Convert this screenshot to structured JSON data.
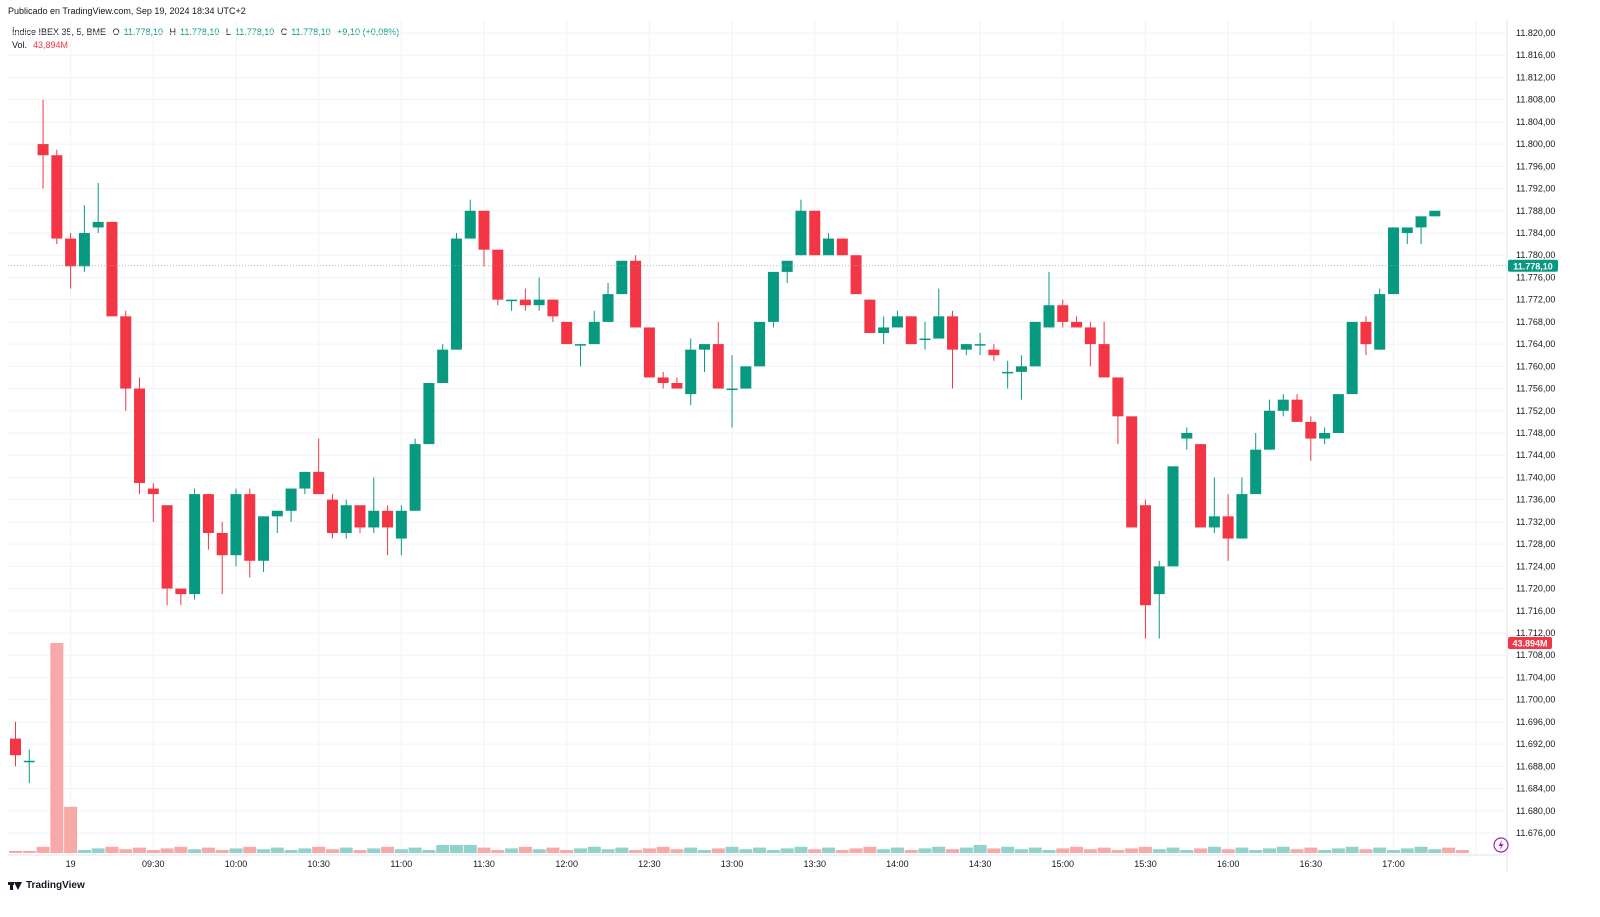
{
  "header": {
    "published": "Publicado en TradingView.com, Sep 19, 2024 18:34 UTC+2"
  },
  "legend": {
    "symbol": "Índice IBEX 35, 5, BME",
    "open_label": "O",
    "open": "11.778,10",
    "high_label": "H",
    "high": "11.778,10",
    "low_label": "L",
    "low": "11.778,10",
    "close_label": "C",
    "close": "11.778,10",
    "change": "+9,10 (+0,08%)",
    "volume_label": "Vol.",
    "volume": "43,894M"
  },
  "footer": {
    "brand": "TradingView"
  },
  "colors": {
    "up": "#089981",
    "down": "#f23645",
    "vol_up": "#92d2cc",
    "vol_down": "#f7a9a7",
    "grid": "#f0f3fa"
  },
  "chart_data": {
    "type": "candlestick",
    "y_ticks": [
      "11.820,00",
      "11.816,00",
      "11.812,00",
      "11.808,00",
      "11.804,00",
      "11.800,00",
      "11.796,00",
      "11.792,00",
      "11.788,00",
      "11.784,00",
      "11.780,00",
      "11.776,00",
      "11.772,00",
      "11.768,00",
      "11.764,00",
      "11.760,00",
      "11.756,00",
      "11.752,00",
      "11.748,00",
      "11.744,00",
      "11.740,00",
      "11.736,00",
      "11.732,00",
      "11.728,00",
      "11.724,00",
      "11.720,00",
      "11.716,00",
      "11.712,00",
      "11.708,00",
      "11.704,00",
      "11.700,00",
      "11.696,00",
      "11.692,00",
      "11.688,00",
      "11.684,00",
      "11.680,00",
      "11.676,00"
    ],
    "y_tick_values": [
      11820,
      11816,
      11812,
      11808,
      11804,
      11800,
      11796,
      11792,
      11788,
      11784,
      11780,
      11776,
      11772,
      11768,
      11764,
      11760,
      11756,
      11752,
      11748,
      11744,
      11740,
      11736,
      11732,
      11728,
      11724,
      11720,
      11716,
      11712,
      11708,
      11704,
      11700,
      11696,
      11692,
      11688,
      11684,
      11680,
      11676
    ],
    "x_labels": [
      {
        "i": 4,
        "label": "19"
      },
      {
        "i": 10,
        "label": "09:30"
      },
      {
        "i": 16,
        "label": "10:00"
      },
      {
        "i": 22,
        "label": "10:30"
      },
      {
        "i": 28,
        "label": "11:00"
      },
      {
        "i": 34,
        "label": "11:30"
      },
      {
        "i": 40,
        "label": "12:00"
      },
      {
        "i": 46,
        "label": "12:30"
      },
      {
        "i": 52,
        "label": "13:00"
      },
      {
        "i": 58,
        "label": "13:30"
      },
      {
        "i": 64,
        "label": "14:00"
      },
      {
        "i": 70,
        "label": "14:30"
      },
      {
        "i": 76,
        "label": "15:00"
      },
      {
        "i": 82,
        "label": "15:30"
      },
      {
        "i": 88,
        "label": "16:00"
      },
      {
        "i": 94,
        "label": "16:30"
      },
      {
        "i": 100,
        "label": "17:00"
      },
      {
        "i": 106,
        "label": ""
      }
    ],
    "last_price": 11778.1,
    "last_price_label": "11.778,10",
    "last_volume_label": "43.894M",
    "ohlc": [
      [
        11693,
        11696,
        11688,
        11690
      ],
      [
        11689,
        11691,
        11685,
        11689
      ],
      [
        11800,
        11808,
        11792,
        11798
      ],
      [
        11798,
        11799,
        11782,
        11783
      ],
      [
        11783,
        11784,
        11774,
        11778
      ],
      [
        11778,
        11789,
        11777,
        11784
      ],
      [
        11785,
        11793,
        11784,
        11786
      ],
      [
        11786,
        11786,
        11769,
        11769
      ],
      [
        11769,
        11770,
        11752,
        11756
      ],
      [
        11756,
        11758,
        11737,
        11739
      ],
      [
        11738,
        11739,
        11732,
        11737
      ],
      [
        11735,
        11735,
        11717,
        11720
      ],
      [
        11720,
        11720,
        11717,
        11719
      ],
      [
        11719,
        11738,
        11718,
        11737
      ],
      [
        11737,
        11737,
        11727,
        11730
      ],
      [
        11730,
        11732,
        11719,
        11726
      ],
      [
        11726,
        11738,
        11724,
        11737
      ],
      [
        11737,
        11738,
        11722,
        11725
      ],
      [
        11725,
        11733,
        11723,
        11733
      ],
      [
        11733,
        11734,
        11730,
        11734
      ],
      [
        11734,
        11738,
        11732,
        11738
      ],
      [
        11738,
        11741,
        11737,
        11741
      ],
      [
        11741,
        11747,
        11737,
        11737
      ],
      [
        11736,
        11737,
        11729,
        11730
      ],
      [
        11730,
        11736,
        11729,
        11735
      ],
      [
        11735,
        11735,
        11730,
        11731
      ],
      [
        11731,
        11740,
        11730,
        11734
      ],
      [
        11734,
        11735,
        11726,
        11731
      ],
      [
        11729,
        11735,
        11726,
        11734
      ],
      [
        11734,
        11747,
        11734,
        11746
      ],
      [
        11746,
        11757,
        11746,
        11757
      ],
      [
        11757,
        11764,
        11757,
        11763
      ],
      [
        11763,
        11784,
        11763,
        11783
      ],
      [
        11783,
        11790,
        11783,
        11788
      ],
      [
        11788,
        11788,
        11778,
        11781
      ],
      [
        11781,
        11781,
        11771,
        11772
      ],
      [
        11772,
        11772,
        11770,
        11772
      ],
      [
        11772,
        11774,
        11770,
        11771
      ],
      [
        11771,
        11776,
        11770,
        11772
      ],
      [
        11772,
        11772,
        11768,
        11769
      ],
      [
        11768,
        11768,
        11764,
        11764
      ],
      [
        11764,
        11764,
        11760,
        11764
      ],
      [
        11764,
        11770,
        11764,
        11768
      ],
      [
        11768,
        11775,
        11768,
        11773
      ],
      [
        11773,
        11779,
        11773,
        11779
      ],
      [
        11779,
        11780,
        11767,
        11767
      ],
      [
        11767,
        11767,
        11758,
        11758
      ],
      [
        11758,
        11759,
        11756,
        11757
      ],
      [
        11757,
        11758,
        11756,
        11756
      ],
      [
        11755,
        11765,
        11753,
        11763
      ],
      [
        11763,
        11764,
        11759,
        11764
      ],
      [
        11764,
        11768,
        11756,
        11756
      ],
      [
        11756,
        11762,
        11749,
        11756
      ],
      [
        11756,
        11760,
        11756,
        11760
      ],
      [
        11760,
        11768,
        11760,
        11768
      ],
      [
        11768,
        11777,
        11767,
        11777
      ],
      [
        11777,
        11779,
        11775,
        11779
      ],
      [
        11780,
        11790,
        11780,
        11788
      ],
      [
        11788,
        11788,
        11780,
        11780
      ],
      [
        11780,
        11784,
        11780,
        11783
      ],
      [
        11783,
        11783,
        11780,
        11780
      ],
      [
        11780,
        11780,
        11773,
        11773
      ],
      [
        11772,
        11772,
        11766,
        11766
      ],
      [
        11766,
        11769,
        11764,
        11767
      ],
      [
        11767,
        11770,
        11767,
        11769
      ],
      [
        11769,
        11769,
        11764,
        11764
      ],
      [
        11765,
        11768,
        11763,
        11765
      ],
      [
        11765,
        11774,
        11765,
        11769
      ],
      [
        11769,
        11770,
        11756,
        11763
      ],
      [
        11763,
        11764,
        11762,
        11764
      ],
      [
        11764,
        11766,
        11762,
        11764
      ],
      [
        11763,
        11764,
        11761,
        11762
      ],
      [
        11759,
        11761,
        11756,
        11759
      ],
      [
        11759,
        11762,
        11754,
        11760
      ],
      [
        11760,
        11768,
        11760,
        11768
      ],
      [
        11767,
        11777,
        11767,
        11771
      ],
      [
        11771,
        11772,
        11767,
        11768
      ],
      [
        11768,
        11769,
        11767,
        11767
      ],
      [
        11767,
        11768,
        11760,
        11764
      ],
      [
        11764,
        11768,
        11758,
        11758
      ],
      [
        11758,
        11758,
        11746,
        11751
      ],
      [
        11751,
        11751,
        11731,
        11731
      ],
      [
        11735,
        11736,
        11711,
        11717
      ],
      [
        11719,
        11725,
        11711,
        11724
      ],
      [
        11724,
        11742,
        11724,
        11742
      ],
      [
        11747,
        11749,
        11745,
        11748
      ],
      [
        11746,
        11746,
        11731,
        11731
      ],
      [
        11731,
        11740,
        11730,
        11733
      ],
      [
        11733,
        11737,
        11725,
        11729
      ],
      [
        11729,
        11740,
        11729,
        11737
      ],
      [
        11737,
        11748,
        11737,
        11745
      ],
      [
        11745,
        11754,
        11745,
        11752
      ],
      [
        11752,
        11755,
        11751,
        11754
      ],
      [
        11754,
        11755,
        11750,
        11750
      ],
      [
        11750,
        11751,
        11743,
        11747
      ],
      [
        11747,
        11749,
        11746,
        11748
      ],
      [
        11748,
        11755,
        11748,
        11755
      ],
      [
        11755,
        11768,
        11755,
        11768
      ],
      [
        11768,
        11769,
        11762,
        11764
      ],
      [
        11763,
        11774,
        11763,
        11773
      ],
      [
        11773,
        11785,
        11773,
        11785
      ],
      [
        11784,
        11785,
        11782,
        11785
      ],
      [
        11785,
        11787,
        11782,
        11787
      ],
      [
        11787,
        11788,
        11787,
        11788
      ]
    ],
    "volume_bars": [
      {
        "i": 0,
        "pct": 1.0,
        "up": false
      },
      {
        "i": 1,
        "pct": 1.0,
        "up": false
      },
      {
        "i": 3,
        "pct": 100,
        "up": false
      },
      {
        "i": 4,
        "pct": 22,
        "up": false
      },
      {
        "i": 108,
        "pct": 100,
        "up": false
      }
    ],
    "grid": true
  }
}
